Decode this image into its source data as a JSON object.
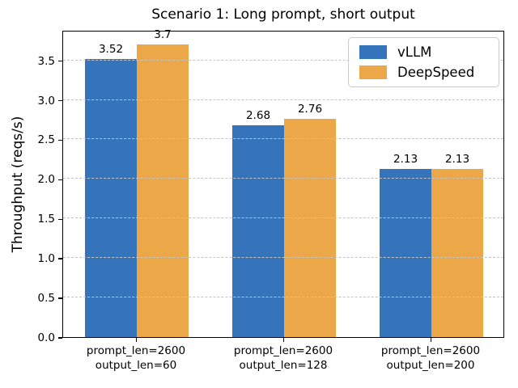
{
  "chart_data": {
    "type": "bar",
    "title": "Scenario 1: Long prompt, short output",
    "ylabel": "Throughput (reqs/s)",
    "xlabel": "",
    "categories": [
      [
        "prompt_len=2600",
        "output_len=60"
      ],
      [
        "prompt_len=2600",
        "output_len=128"
      ],
      [
        "prompt_len=2600",
        "output_len=200"
      ]
    ],
    "series": [
      {
        "name": "vLLM",
        "color": "#3574BB",
        "values": [
          3.52,
          2.68,
          2.13
        ],
        "labels": [
          "3.52",
          "2.68",
          "2.13"
        ]
      },
      {
        "name": "DeepSpeed",
        "color": "#EBA748",
        "values": [
          3.7,
          2.76,
          2.13
        ],
        "labels": [
          "3.7",
          "2.76",
          "2.13"
        ]
      }
    ],
    "yticks": [
      "0.0",
      "0.5",
      "1.0",
      "1.5",
      "2.0",
      "2.5",
      "3.0",
      "3.5"
    ],
    "ytick_values": [
      0,
      0.5,
      1,
      1.5,
      2,
      2.5,
      3,
      3.5
    ],
    "ylim": [
      0,
      3.885
    ],
    "grid": true,
    "grid_style": "dashed",
    "grid_color": "#c4c4c4",
    "legend_position": "upper right",
    "background": "#ffffff",
    "axis_color": "#000000"
  }
}
